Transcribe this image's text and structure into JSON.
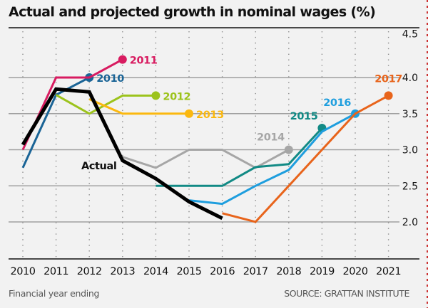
{
  "chart_data": {
    "type": "line",
    "title": "Actual and projected growth in nominal wages (%)",
    "xlabel": "Financial year ending",
    "ylabel": "",
    "source": "SOURCE: GRATTAN INSTITUTE",
    "x": [
      2010,
      2011,
      2012,
      2013,
      2014,
      2015,
      2016,
      2017,
      2018,
      2019,
      2020,
      2021
    ],
    "x_tick_labels": [
      "2010",
      "2011",
      "2012",
      "2013",
      "2014",
      "2015",
      "2016",
      "2017",
      "2018",
      "2019",
      "2020",
      "2021"
    ],
    "ylim": [
      1.6,
      4.6
    ],
    "y_ticks": [
      2.0,
      2.5,
      3.0,
      3.5,
      4.0,
      4.5
    ],
    "y_tick_labels": [
      "2.0",
      "2.5",
      "3.0",
      "3.5",
      "4.0",
      "4.5"
    ],
    "y_axis_side": "right",
    "grid": "horizontal solid, vertical dotted",
    "series": [
      {
        "name": "2010",
        "label": "2010",
        "color": "#1a6496",
        "end_marker": true,
        "points": [
          [
            2010,
            2.75
          ],
          [
            2011,
            3.76
          ],
          [
            2012,
            4.0
          ]
        ]
      },
      {
        "name": "2011",
        "label": "2011",
        "color": "#d81b60",
        "end_marker": true,
        "points": [
          [
            2010,
            3.0
          ],
          [
            2011,
            4.0
          ],
          [
            2012,
            4.0
          ],
          [
            2013,
            4.25
          ]
        ]
      },
      {
        "name": "2012",
        "label": "2012",
        "color": "#9cc31c",
        "end_marker": true,
        "points": [
          [
            2011,
            3.76
          ],
          [
            2012,
            3.5
          ],
          [
            2013,
            3.75
          ],
          [
            2014,
            3.75
          ]
        ]
      },
      {
        "name": "2013",
        "label": "2013",
        "color": "#fbb80f",
        "end_marker": true,
        "points": [
          [
            2012,
            3.7
          ],
          [
            2013,
            3.5
          ],
          [
            2014,
            3.5
          ],
          [
            2015,
            3.5
          ]
        ]
      },
      {
        "name": "2014",
        "label": "2014",
        "color": "#a6a6a6",
        "end_marker": true,
        "points": [
          [
            2013,
            2.9
          ],
          [
            2014,
            2.75
          ],
          [
            2015,
            3.0
          ],
          [
            2016,
            3.0
          ],
          [
            2017,
            2.75
          ],
          [
            2018,
            3.0
          ]
        ]
      },
      {
        "name": "2015",
        "label": "2015",
        "color": "#128a85",
        "end_marker": true,
        "points": [
          [
            2014,
            2.5
          ],
          [
            2015,
            2.5
          ],
          [
            2016,
            2.5
          ],
          [
            2017,
            2.76
          ],
          [
            2018,
            2.8
          ],
          [
            2019,
            3.3
          ]
        ]
      },
      {
        "name": "2016",
        "label": "2016",
        "color": "#1e9ede",
        "end_marker": true,
        "points": [
          [
            2015,
            2.3
          ],
          [
            2016,
            2.25
          ],
          [
            2017,
            2.5
          ],
          [
            2018,
            2.72
          ],
          [
            2019,
            3.25
          ],
          [
            2020,
            3.5
          ]
        ]
      },
      {
        "name": "2017",
        "label": "2017",
        "color": "#e8641b",
        "end_marker": true,
        "points": [
          [
            2016,
            2.12
          ],
          [
            2017,
            2.0
          ],
          [
            2018,
            2.5
          ],
          [
            2019,
            3.0
          ],
          [
            2020,
            3.5
          ],
          [
            2021,
            3.75
          ]
        ]
      },
      {
        "name": "Actual",
        "label": "Actual",
        "color": "#000000",
        "end_marker": false,
        "points": [
          [
            2010,
            3.07
          ],
          [
            2011,
            3.84
          ],
          [
            2012,
            3.8
          ],
          [
            2013,
            2.85
          ],
          [
            2014,
            2.6
          ],
          [
            2015,
            2.28
          ],
          [
            2016,
            2.05
          ]
        ]
      }
    ]
  }
}
